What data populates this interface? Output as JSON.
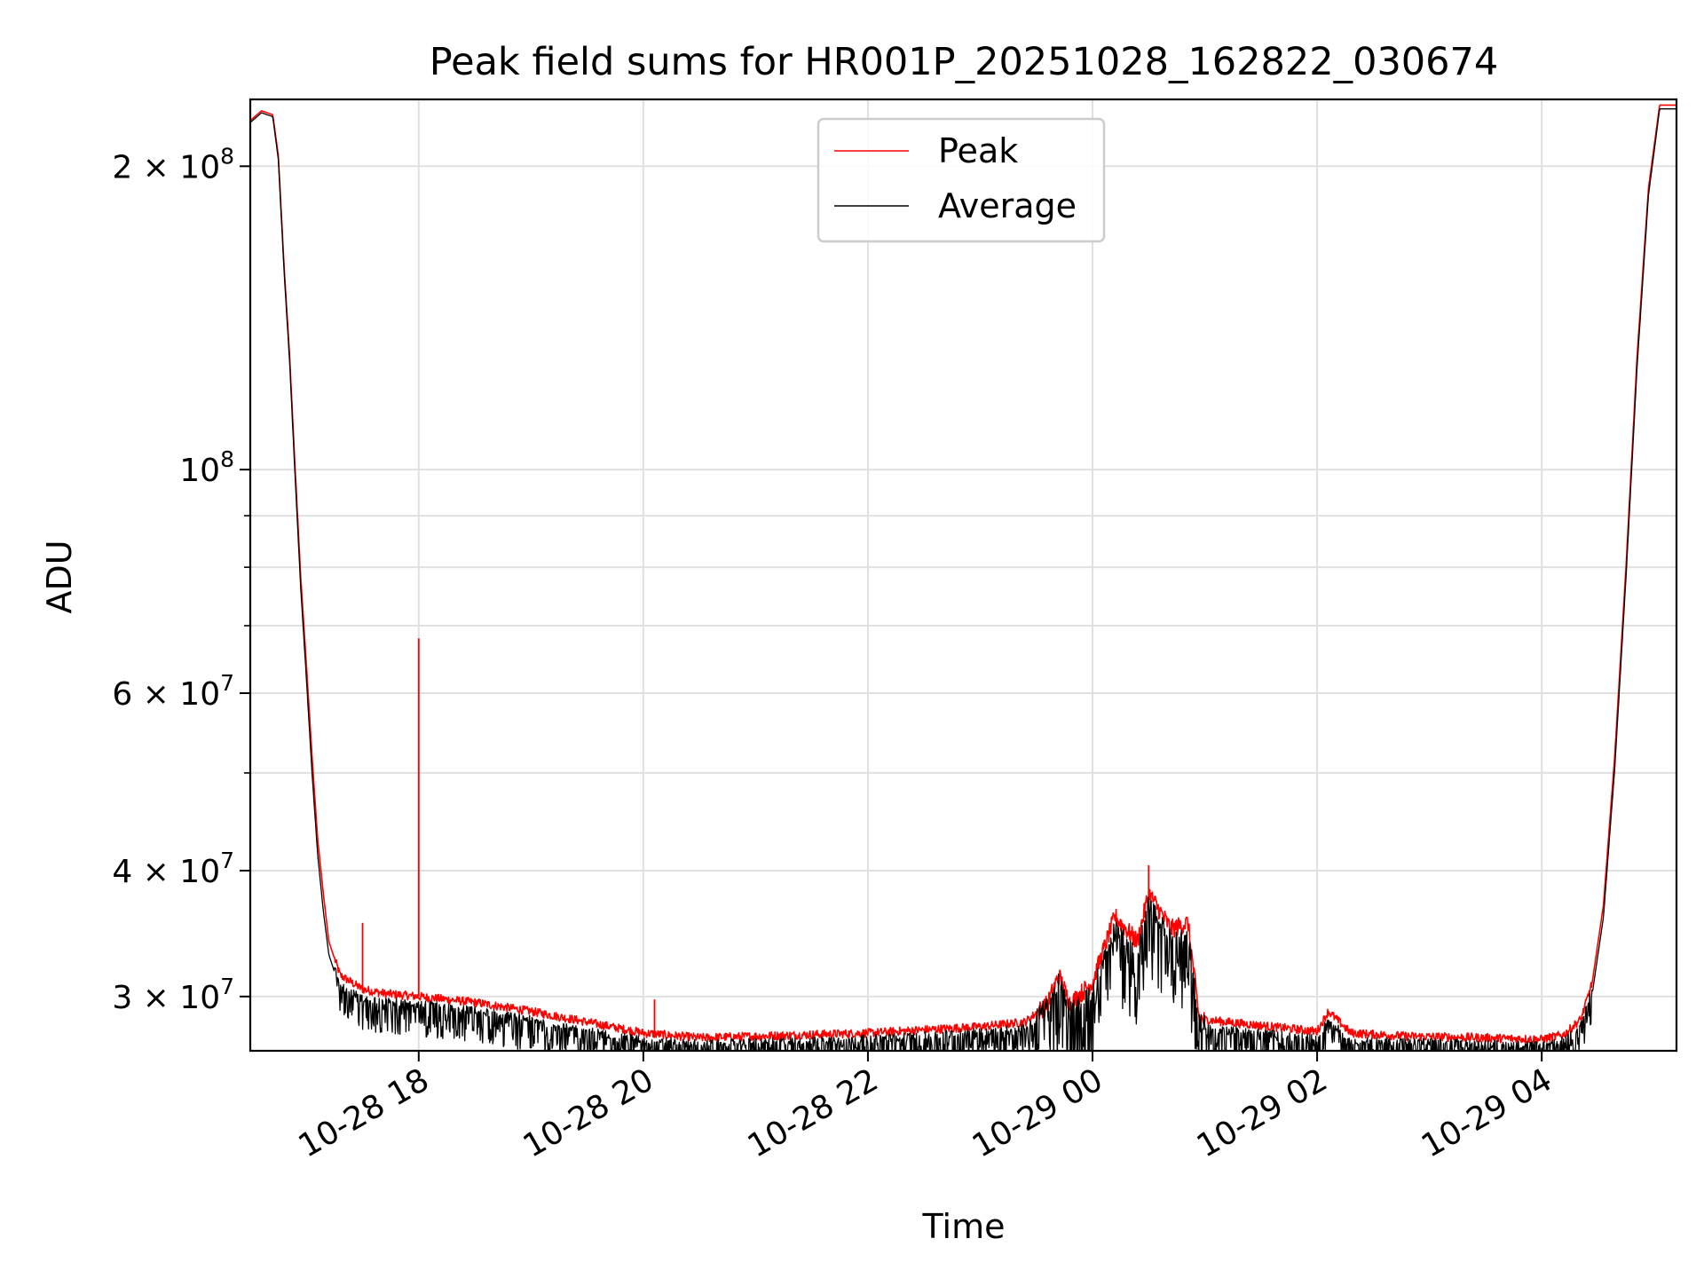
{
  "chart_data": {
    "type": "line",
    "title": "Peak field sums for HR001P_20251028_162822_030674",
    "xlabel": "Time",
    "ylabel": "ADU",
    "yscale": "log",
    "grid": true,
    "legend_placement": "upper center",
    "x_unit": "hours since 10-28 00:00",
    "xlim": [
      16.5,
      29.2
    ],
    "ylim": [
      26500000,
      233000000
    ],
    "x_ticks": [
      {
        "value": 18,
        "label": "10-28 18"
      },
      {
        "value": 20,
        "label": "10-28 20"
      },
      {
        "value": 22,
        "label": "10-28 22"
      },
      {
        "value": 24,
        "label": "10-29 00"
      },
      {
        "value": 26,
        "label": "10-29 02"
      },
      {
        "value": 28,
        "label": "10-29 04"
      }
    ],
    "y_ticks": [
      {
        "value": 200000000,
        "mantissa": "2",
        "times": "×",
        "base": "10",
        "exp": "8"
      },
      {
        "value": 100000000,
        "mantissa": "",
        "times": "",
        "base": "10",
        "exp": "8"
      },
      {
        "value": 60000000,
        "mantissa": "6",
        "times": "×",
        "base": "10",
        "exp": "7"
      },
      {
        "value": 40000000,
        "mantissa": "4",
        "times": "×",
        "base": "10",
        "exp": "7"
      },
      {
        "value": 30000000,
        "mantissa": "3",
        "times": "×",
        "base": "10",
        "exp": "7"
      }
    ],
    "y_minor_ticks": [
      50000000,
      70000000,
      80000000,
      90000000
    ],
    "series": [
      {
        "name": "Peak",
        "color": "#ff0000",
        "points": [
          [
            16.5,
            222000000
          ],
          [
            16.6,
            227000000
          ],
          [
            16.7,
            225000000
          ],
          [
            16.75,
            205000000
          ],
          [
            16.8,
            160000000
          ],
          [
            16.85,
            130000000
          ],
          [
            16.9,
            100000000
          ],
          [
            16.95,
            78000000
          ],
          [
            17.0,
            64000000
          ],
          [
            17.05,
            52000000
          ],
          [
            17.1,
            43000000
          ],
          [
            17.15,
            38000000
          ],
          [
            17.2,
            34000000
          ],
          [
            17.3,
            31500000
          ],
          [
            17.5,
            30500000
          ],
          [
            17.7,
            30200000
          ],
          [
            18.0,
            30000000
          ],
          [
            18.5,
            29600000
          ],
          [
            19.0,
            29000000
          ],
          [
            19.5,
            28300000
          ],
          [
            20.0,
            27600000
          ],
          [
            20.5,
            27300000
          ],
          [
            21.0,
            27400000
          ],
          [
            21.5,
            27500000
          ],
          [
            22.0,
            27600000
          ],
          [
            22.5,
            27800000
          ],
          [
            23.0,
            28000000
          ],
          [
            23.4,
            28300000
          ],
          [
            23.6,
            29500000
          ],
          [
            23.7,
            31500000
          ],
          [
            23.8,
            29500000
          ],
          [
            24.0,
            31000000
          ],
          [
            24.2,
            36000000
          ],
          [
            24.4,
            34000000
          ],
          [
            24.5,
            38000000
          ],
          [
            24.7,
            35000000
          ],
          [
            24.85,
            35500000
          ],
          [
            24.95,
            28500000
          ],
          [
            25.2,
            28300000
          ],
          [
            25.6,
            28000000
          ],
          [
            26.0,
            27700000
          ],
          [
            26.1,
            29000000
          ],
          [
            26.3,
            27600000
          ],
          [
            26.8,
            27400000
          ],
          [
            27.5,
            27300000
          ],
          [
            28.0,
            27200000
          ],
          [
            28.2,
            27500000
          ],
          [
            28.35,
            28500000
          ],
          [
            28.45,
            31000000
          ],
          [
            28.55,
            37000000
          ],
          [
            28.65,
            52000000
          ],
          [
            28.75,
            80000000
          ],
          [
            28.85,
            130000000
          ],
          [
            28.95,
            190000000
          ],
          [
            29.05,
            230000000
          ]
        ]
      },
      {
        "name": "Average",
        "color": "#000000",
        "points": [
          [
            16.5,
            221000000
          ],
          [
            16.6,
            226000000
          ],
          [
            16.7,
            224000000
          ],
          [
            16.75,
            203000000
          ],
          [
            16.8,
            158000000
          ],
          [
            16.85,
            128000000
          ],
          [
            16.9,
            98000000
          ],
          [
            16.95,
            76000000
          ],
          [
            17.0,
            62000000
          ],
          [
            17.05,
            50000000
          ],
          [
            17.1,
            41500000
          ],
          [
            17.15,
            36500000
          ],
          [
            17.2,
            33000000
          ],
          [
            17.3,
            30500000
          ],
          [
            17.5,
            29600000
          ],
          [
            17.7,
            29400000
          ],
          [
            18.0,
            29200000
          ],
          [
            18.5,
            28800000
          ],
          [
            19.0,
            28200000
          ],
          [
            19.5,
            27500000
          ],
          [
            20.0,
            26900000
          ],
          [
            20.5,
            26700000
          ],
          [
            21.0,
            26800000
          ],
          [
            21.5,
            26900000
          ],
          [
            22.0,
            27000000
          ],
          [
            22.5,
            27200000
          ],
          [
            23.0,
            27400000
          ],
          [
            23.4,
            27700000
          ],
          [
            23.6,
            28800000
          ],
          [
            23.7,
            30500000
          ],
          [
            23.8,
            28500000
          ],
          [
            24.0,
            29800000
          ],
          [
            24.2,
            34500000
          ],
          [
            24.4,
            32500000
          ],
          [
            24.5,
            36500000
          ],
          [
            24.7,
            33500000
          ],
          [
            24.85,
            34000000
          ],
          [
            24.95,
            27800000
          ],
          [
            25.2,
            27600000
          ],
          [
            25.6,
            27300000
          ],
          [
            26.0,
            27000000
          ],
          [
            26.1,
            28200000
          ],
          [
            26.3,
            26900000
          ],
          [
            26.8,
            26800000
          ],
          [
            27.5,
            26700000
          ],
          [
            28.0,
            26600000
          ],
          [
            28.2,
            26900000
          ],
          [
            28.35,
            27900000
          ],
          [
            28.45,
            30200000
          ],
          [
            28.55,
            36000000
          ],
          [
            28.65,
            50500000
          ],
          [
            28.75,
            78000000
          ],
          [
            28.85,
            127000000
          ],
          [
            28.95,
            187000000
          ],
          [
            29.05,
            228000000
          ]
        ]
      }
    ],
    "annotations": [
      {
        "type": "spike",
        "series": "Peak",
        "x": 18.0,
        "y": 68000000
      },
      {
        "type": "spike",
        "series": "Peak",
        "x": 17.5,
        "y": 35500000
      },
      {
        "type": "spike",
        "series": "Peak",
        "x": 20.1,
        "y": 29800000
      },
      {
        "type": "spike",
        "series": "Peak",
        "x": 24.5,
        "y": 40500000
      }
    ]
  }
}
